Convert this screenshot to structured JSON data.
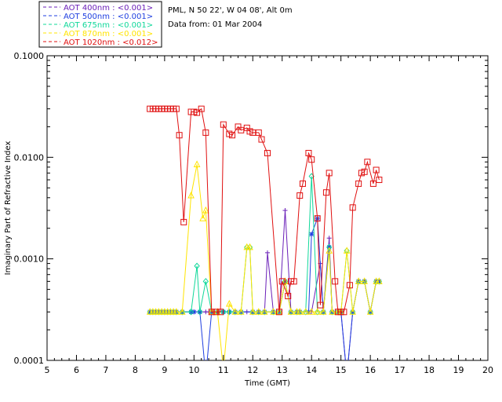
{
  "info": {
    "site": "PML, N 50 22', W 04 08', Alt 0m",
    "date": "Data from: 01 Mar 2004"
  },
  "legend": {
    "entries": [
      {
        "label": "AOT  400nm : <0.001>",
        "color": "#6a1fb8"
      },
      {
        "label": "AOT  500nm : <0.001>",
        "color": "#1f3fe0"
      },
      {
        "label": "AOT  675nm : <0.001>",
        "color": "#10d89a"
      },
      {
        "label": "AOT  870nm : <0.001>",
        "color": "#ffe400"
      },
      {
        "label": "AOT 1020nm : <0.012>",
        "color": "#e01010"
      }
    ]
  },
  "chart_data": {
    "type": "line",
    "xlabel": "Time (GMT)",
    "ylabel": "Imaginary Part of Refractive Index",
    "xlim": [
      5,
      20
    ],
    "ylim": [
      0.0001,
      0.1
    ],
    "yscale": "log",
    "grid": false,
    "legend_position": "top-left outside",
    "x_ticks": [
      "5",
      "6",
      "7",
      "8",
      "9",
      "10",
      "11",
      "12",
      "13",
      "14",
      "15",
      "16",
      "17",
      "18",
      "19",
      "20"
    ],
    "y_ticks": [
      {
        "value": 0.0001,
        "label": "0.0001"
      },
      {
        "value": 0.001,
        "label": "0.0010"
      },
      {
        "value": 0.01,
        "label": "0.0100"
      },
      {
        "value": 0.1,
        "label": "0.1000"
      }
    ],
    "series": [
      {
        "name": "AOT  400nm : <0.001>",
        "color": "#6a1fb8",
        "marker": "plus",
        "points": [
          [
            8.5,
            0.0003
          ],
          [
            8.6,
            0.0003
          ],
          [
            8.7,
            0.0003
          ],
          [
            8.8,
            0.0003
          ],
          [
            8.9,
            0.0003
          ],
          [
            9.0,
            0.0003
          ],
          [
            9.1,
            0.0003
          ],
          [
            9.2,
            0.0003
          ],
          [
            9.3,
            0.0003
          ],
          [
            9.4,
            0.0003
          ],
          [
            9.6,
            0.0003
          ],
          [
            9.9,
            0.0003
          ],
          [
            10.0,
            0.0003
          ],
          [
            10.2,
            0.0003
          ],
          [
            10.4,
            0.0003
          ],
          [
            10.6,
            0.0003
          ],
          [
            10.8,
            0.0003
          ],
          [
            11.0,
            0.0003
          ],
          [
            11.2,
            0.0003
          ],
          [
            11.4,
            0.0003
          ],
          [
            11.6,
            0.0003
          ],
          [
            11.8,
            0.0003
          ],
          [
            12.0,
            0.0003
          ],
          [
            12.2,
            0.0003
          ],
          [
            12.4,
            0.0003
          ],
          [
            12.5,
            0.00115
          ],
          [
            12.7,
            0.0003
          ],
          [
            12.9,
            0.0003
          ],
          [
            13.1,
            0.003
          ],
          [
            13.3,
            0.0003
          ],
          [
            13.5,
            0.0003
          ],
          [
            13.6,
            0.0003
          ],
          [
            13.9,
            0.0003
          ],
          [
            14.0,
            0.0003
          ],
          [
            14.3,
            0.0009
          ],
          [
            14.4,
            0.0003
          ],
          [
            14.6,
            0.0016
          ],
          [
            14.7,
            0.0003
          ],
          [
            14.9,
            0.0003
          ],
          [
            15.0,
            0.0003
          ],
          [
            15.2,
            7e-05
          ],
          [
            15.4,
            0.0003
          ],
          [
            15.6,
            0.0006
          ],
          [
            15.8,
            0.0006
          ],
          [
            16.0,
            0.0003
          ],
          [
            16.2,
            0.0006
          ],
          [
            16.3,
            0.0006
          ]
        ]
      },
      {
        "name": "AOT  500nm : <0.001>",
        "color": "#1f3fe0",
        "marker": "asterisk",
        "points": [
          [
            8.5,
            0.0003
          ],
          [
            8.6,
            0.0003
          ],
          [
            8.7,
            0.0003
          ],
          [
            8.8,
            0.0003
          ],
          [
            8.9,
            0.0003
          ],
          [
            9.0,
            0.0003
          ],
          [
            9.1,
            0.0003
          ],
          [
            9.2,
            0.0003
          ],
          [
            9.3,
            0.0003
          ],
          [
            9.4,
            0.0003
          ],
          [
            9.6,
            0.0003
          ],
          [
            9.9,
            0.0003
          ],
          [
            10.0,
            0.0003
          ],
          [
            10.2,
            0.0003
          ],
          [
            10.4,
            7e-05
          ],
          [
            10.6,
            0.0003
          ],
          [
            10.8,
            0.0003
          ],
          [
            11.0,
            0.0003
          ],
          [
            11.2,
            0.0003
          ],
          [
            11.4,
            0.0003
          ],
          [
            11.6,
            0.0003
          ],
          [
            12.0,
            0.0003
          ],
          [
            12.2,
            0.0003
          ],
          [
            12.4,
            0.0003
          ],
          [
            12.7,
            0.0003
          ],
          [
            12.9,
            0.0003
          ],
          [
            13.1,
            0.0006
          ],
          [
            13.3,
            0.0003
          ],
          [
            13.5,
            0.0003
          ],
          [
            13.6,
            0.0003
          ],
          [
            13.9,
            0.0003
          ],
          [
            14.0,
            0.00175
          ],
          [
            14.2,
            0.0025
          ],
          [
            14.4,
            0.0003
          ],
          [
            14.6,
            0.0013
          ],
          [
            14.7,
            0.0003
          ],
          [
            14.9,
            0.0003
          ],
          [
            15.0,
            0.0003
          ],
          [
            15.2,
            7e-05
          ],
          [
            15.4,
            0.0003
          ],
          [
            15.6,
            0.0006
          ],
          [
            15.8,
            0.0006
          ],
          [
            16.0,
            0.0003
          ],
          [
            16.2,
            0.0006
          ],
          [
            16.3,
            0.0006
          ]
        ]
      },
      {
        "name": "AOT  675nm : <0.001>",
        "color": "#10d89a",
        "marker": "diamond",
        "points": [
          [
            8.5,
            0.0003
          ],
          [
            8.6,
            0.0003
          ],
          [
            8.7,
            0.0003
          ],
          [
            8.8,
            0.0003
          ],
          [
            8.9,
            0.0003
          ],
          [
            9.0,
            0.0003
          ],
          [
            9.1,
            0.0003
          ],
          [
            9.2,
            0.0003
          ],
          [
            9.3,
            0.0003
          ],
          [
            9.4,
            0.0003
          ],
          [
            9.6,
            0.0003
          ],
          [
            9.9,
            0.0003
          ],
          [
            10.1,
            0.00085
          ],
          [
            10.2,
            0.0003
          ],
          [
            10.4,
            0.0006
          ],
          [
            10.6,
            0.0003
          ],
          [
            10.8,
            0.0003
          ],
          [
            11.0,
            0.0003
          ],
          [
            11.2,
            0.0003
          ],
          [
            11.4,
            0.0003
          ],
          [
            11.6,
            0.0003
          ],
          [
            11.8,
            0.0013
          ],
          [
            11.9,
            0.0013
          ],
          [
            12.0,
            0.0003
          ],
          [
            12.2,
            0.0003
          ],
          [
            12.4,
            0.0003
          ],
          [
            12.7,
            0.0003
          ],
          [
            12.9,
            0.0003
          ],
          [
            13.1,
            0.0006
          ],
          [
            13.3,
            0.0003
          ],
          [
            13.5,
            0.0003
          ],
          [
            13.6,
            0.0003
          ],
          [
            13.8,
            0.0003
          ],
          [
            14.0,
            0.0065
          ],
          [
            14.2,
            0.0003
          ],
          [
            14.4,
            0.0003
          ],
          [
            14.6,
            0.0013
          ],
          [
            14.7,
            0.0003
          ],
          [
            14.9,
            0.0003
          ],
          [
            15.0,
            0.0003
          ],
          [
            15.2,
            0.0012
          ],
          [
            15.4,
            0.0003
          ],
          [
            15.6,
            0.0006
          ],
          [
            15.8,
            0.0006
          ],
          [
            16.0,
            0.0003
          ],
          [
            16.2,
            0.0006
          ],
          [
            16.3,
            0.0006
          ]
        ]
      },
      {
        "name": "AOT  870nm : <0.001>",
        "color": "#ffe400",
        "marker": "triangle",
        "points": [
          [
            8.5,
            0.0003
          ],
          [
            8.6,
            0.0003
          ],
          [
            8.7,
            0.0003
          ],
          [
            8.8,
            0.0003
          ],
          [
            8.9,
            0.0003
          ],
          [
            9.0,
            0.0003
          ],
          [
            9.1,
            0.0003
          ],
          [
            9.2,
            0.0003
          ],
          [
            9.3,
            0.0003
          ],
          [
            9.4,
            0.0003
          ],
          [
            9.6,
            0.0003
          ],
          [
            9.9,
            0.0042
          ],
          [
            10.1,
            0.0085
          ],
          [
            10.3,
            0.0025
          ],
          [
            10.4,
            0.003
          ],
          [
            10.6,
            0.0003
          ],
          [
            10.8,
            0.0003
          ],
          [
            11.0,
            8e-05
          ],
          [
            11.2,
            0.00036
          ],
          [
            11.4,
            0.0003
          ],
          [
            11.6,
            0.0003
          ],
          [
            11.8,
            0.0013
          ],
          [
            11.9,
            0.0013
          ],
          [
            12.0,
            0.0003
          ],
          [
            12.2,
            0.0003
          ],
          [
            12.4,
            0.0003
          ],
          [
            12.7,
            0.0003
          ],
          [
            12.9,
            0.0003
          ],
          [
            13.1,
            0.0006
          ],
          [
            13.3,
            0.0003
          ],
          [
            13.5,
            0.0003
          ],
          [
            13.6,
            0.0003
          ],
          [
            13.8,
            0.0003
          ],
          [
            14.0,
            0.0003
          ],
          [
            14.2,
            0.0003
          ],
          [
            14.4,
            0.0003
          ],
          [
            14.6,
            0.0012
          ],
          [
            14.7,
            0.0003
          ],
          [
            14.9,
            0.0003
          ],
          [
            15.0,
            0.0003
          ],
          [
            15.2,
            0.0012
          ],
          [
            15.4,
            0.0003
          ],
          [
            15.6,
            0.0006
          ],
          [
            15.8,
            0.0006
          ],
          [
            16.0,
            0.0003
          ],
          [
            16.2,
            0.0006
          ],
          [
            16.3,
            0.0006
          ]
        ]
      },
      {
        "name": "AOT 1020nm : <0.012>",
        "color": "#e01010",
        "marker": "square",
        "points": [
          [
            8.5,
            0.03
          ],
          [
            8.6,
            0.03
          ],
          [
            8.7,
            0.03
          ],
          [
            8.8,
            0.03
          ],
          [
            8.9,
            0.03
          ],
          [
            9.0,
            0.03
          ],
          [
            9.1,
            0.03
          ],
          [
            9.2,
            0.03
          ],
          [
            9.3,
            0.03
          ],
          [
            9.4,
            0.03
          ],
          [
            9.5,
            0.0165
          ],
          [
            9.65,
            0.0023
          ],
          [
            9.9,
            0.028
          ],
          [
            10.0,
            0.028
          ],
          [
            10.1,
            0.0275
          ],
          [
            10.25,
            0.03
          ],
          [
            10.4,
            0.0175
          ],
          [
            10.6,
            0.0003
          ],
          [
            10.75,
            0.0003
          ],
          [
            10.9,
            0.0003
          ],
          [
            11.0,
            0.021
          ],
          [
            11.2,
            0.017
          ],
          [
            11.3,
            0.0165
          ],
          [
            11.5,
            0.02
          ],
          [
            11.6,
            0.0185
          ],
          [
            11.8,
            0.0195
          ],
          [
            11.9,
            0.018
          ],
          [
            12.0,
            0.0175
          ],
          [
            12.2,
            0.0175
          ],
          [
            12.3,
            0.015
          ],
          [
            12.5,
            0.011
          ],
          [
            12.9,
            0.0003
          ],
          [
            13.0,
            0.0006
          ],
          [
            13.2,
            0.00043
          ],
          [
            13.3,
            0.0006
          ],
          [
            13.4,
            0.0006
          ],
          [
            13.6,
            0.0042
          ],
          [
            13.7,
            0.0055
          ],
          [
            13.9,
            0.011
          ],
          [
            14.0,
            0.0095
          ],
          [
            14.2,
            0.0025
          ],
          [
            14.3,
            0.00035
          ],
          [
            14.5,
            0.0045
          ],
          [
            14.6,
            0.007
          ],
          [
            14.8,
            0.0006
          ],
          [
            14.9,
            0.0003
          ],
          [
            15.0,
            0.0003
          ],
          [
            15.1,
            0.0003
          ],
          [
            15.3,
            0.00055
          ],
          [
            15.4,
            0.0032
          ],
          [
            15.6,
            0.0055
          ],
          [
            15.7,
            0.007
          ],
          [
            15.8,
            0.0072
          ],
          [
            15.9,
            0.009
          ],
          [
            16.1,
            0.0055
          ],
          [
            16.2,
            0.0075
          ],
          [
            16.3,
            0.006
          ]
        ]
      }
    ]
  }
}
